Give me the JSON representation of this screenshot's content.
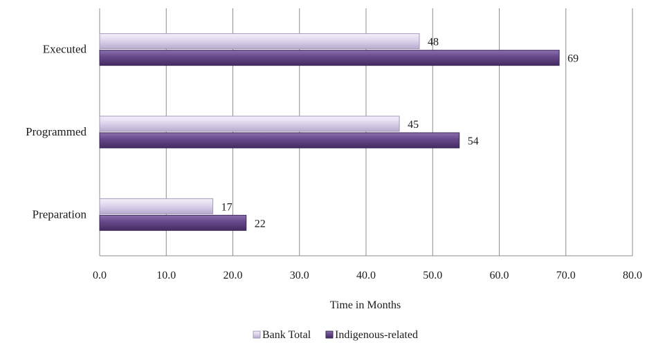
{
  "chart_data": {
    "type": "bar",
    "orientation": "horizontal",
    "categories": [
      "Executed",
      "Programmed",
      "Preparation"
    ],
    "series": [
      {
        "name": "Bank Total",
        "values": [
          48,
          45,
          17
        ],
        "color": "#d9d2e9"
      },
      {
        "name": "Indigenous-related",
        "values": [
          69,
          54,
          22
        ],
        "color": "#6b4f8f"
      }
    ],
    "data_labels": [
      [
        "48",
        "45",
        "17"
      ],
      [
        "69",
        "54",
        "22"
      ]
    ],
    "xlabel": "Time in Months",
    "ylabel": "",
    "xlim": [
      0,
      80
    ],
    "x_ticks": [
      "0.0",
      "10.0",
      "20.0",
      "30.0",
      "40.0",
      "50.0",
      "60.0",
      "70.0",
      "80.0"
    ],
    "grid": "vertical",
    "legend_position": "bottom"
  }
}
